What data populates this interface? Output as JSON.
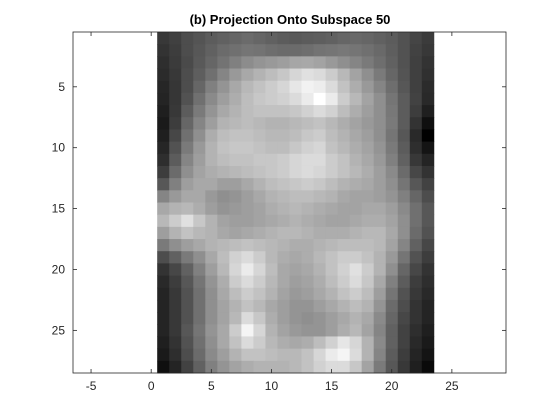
{
  "chart_data": {
    "type": "heatmap",
    "title": "(b) Projection Onto Subspace 50",
    "xlabel": "",
    "ylabel": "",
    "colormap": "gray",
    "xlim": [
      -6.5,
      29.5
    ],
    "ylim": [
      28.5,
      0.5
    ],
    "image_x_range": [
      0.5,
      23.5
    ],
    "image_y_range": [
      0.5,
      28.5
    ],
    "x_ticks": [
      -5,
      0,
      5,
      10,
      15,
      20,
      25
    ],
    "y_ticks": [
      5,
      10,
      15,
      20,
      25
    ],
    "grid": false,
    "box": true,
    "values": [
      [
        0.22,
        0.25,
        0.3,
        0.33,
        0.36,
        0.38,
        0.4,
        0.42,
        0.4,
        0.38,
        0.36,
        0.35,
        0.36,
        0.37,
        0.38,
        0.4,
        0.41,
        0.4,
        0.38,
        0.36,
        0.32,
        0.27,
        0.23
      ],
      [
        0.2,
        0.24,
        0.3,
        0.34,
        0.38,
        0.42,
        0.44,
        0.46,
        0.45,
        0.43,
        0.42,
        0.42,
        0.43,
        0.45,
        0.46,
        0.47,
        0.46,
        0.44,
        0.41,
        0.37,
        0.32,
        0.26,
        0.22
      ],
      [
        0.18,
        0.23,
        0.29,
        0.35,
        0.4,
        0.45,
        0.5,
        0.55,
        0.58,
        0.6,
        0.62,
        0.65,
        0.66,
        0.64,
        0.6,
        0.56,
        0.52,
        0.48,
        0.43,
        0.38,
        0.32,
        0.25,
        0.2
      ],
      [
        0.17,
        0.22,
        0.3,
        0.37,
        0.44,
        0.52,
        0.6,
        0.66,
        0.7,
        0.74,
        0.78,
        0.84,
        0.88,
        0.86,
        0.8,
        0.72,
        0.64,
        0.56,
        0.48,
        0.4,
        0.33,
        0.25,
        0.19
      ],
      [
        0.15,
        0.21,
        0.3,
        0.4,
        0.5,
        0.58,
        0.66,
        0.72,
        0.76,
        0.8,
        0.84,
        0.9,
        0.95,
        0.93,
        0.86,
        0.76,
        0.68,
        0.6,
        0.52,
        0.43,
        0.34,
        0.25,
        0.17
      ],
      [
        0.14,
        0.21,
        0.32,
        0.44,
        0.54,
        0.62,
        0.68,
        0.74,
        0.78,
        0.8,
        0.82,
        0.86,
        0.92,
        1.0,
        0.92,
        0.8,
        0.72,
        0.64,
        0.56,
        0.46,
        0.36,
        0.26,
        0.16
      ],
      [
        0.12,
        0.22,
        0.36,
        0.48,
        0.58,
        0.66,
        0.7,
        0.74,
        0.76,
        0.76,
        0.76,
        0.78,
        0.82,
        0.86,
        0.82,
        0.74,
        0.68,
        0.62,
        0.56,
        0.47,
        0.36,
        0.24,
        0.12
      ],
      [
        0.1,
        0.24,
        0.4,
        0.52,
        0.62,
        0.7,
        0.72,
        0.74,
        0.72,
        0.7,
        0.7,
        0.72,
        0.74,
        0.76,
        0.72,
        0.68,
        0.64,
        0.6,
        0.56,
        0.48,
        0.36,
        0.2,
        0.06
      ],
      [
        0.12,
        0.28,
        0.44,
        0.56,
        0.68,
        0.74,
        0.76,
        0.76,
        0.74,
        0.72,
        0.72,
        0.74,
        0.78,
        0.8,
        0.74,
        0.7,
        0.66,
        0.62,
        0.56,
        0.46,
        0.34,
        0.16,
        0.0
      ],
      [
        0.15,
        0.32,
        0.48,
        0.6,
        0.7,
        0.76,
        0.78,
        0.78,
        0.76,
        0.74,
        0.74,
        0.78,
        0.82,
        0.84,
        0.76,
        0.72,
        0.68,
        0.64,
        0.58,
        0.48,
        0.36,
        0.18,
        0.08
      ],
      [
        0.18,
        0.36,
        0.52,
        0.62,
        0.7,
        0.74,
        0.76,
        0.76,
        0.78,
        0.78,
        0.8,
        0.84,
        0.86,
        0.86,
        0.8,
        0.76,
        0.7,
        0.66,
        0.6,
        0.5,
        0.38,
        0.22,
        0.14
      ],
      [
        0.24,
        0.42,
        0.56,
        0.64,
        0.68,
        0.7,
        0.72,
        0.74,
        0.76,
        0.78,
        0.8,
        0.84,
        0.86,
        0.84,
        0.8,
        0.76,
        0.72,
        0.68,
        0.62,
        0.54,
        0.42,
        0.28,
        0.2
      ],
      [
        0.34,
        0.5,
        0.62,
        0.66,
        0.66,
        0.62,
        0.62,
        0.66,
        0.7,
        0.74,
        0.76,
        0.78,
        0.8,
        0.78,
        0.74,
        0.7,
        0.68,
        0.66,
        0.62,
        0.56,
        0.46,
        0.34,
        0.26
      ],
      [
        0.52,
        0.6,
        0.66,
        0.66,
        0.6,
        0.56,
        0.58,
        0.62,
        0.66,
        0.7,
        0.72,
        0.74,
        0.74,
        0.72,
        0.7,
        0.66,
        0.64,
        0.64,
        0.62,
        0.58,
        0.5,
        0.4,
        0.3
      ],
      [
        0.66,
        0.7,
        0.72,
        0.68,
        0.62,
        0.58,
        0.6,
        0.62,
        0.64,
        0.68,
        0.7,
        0.72,
        0.7,
        0.68,
        0.66,
        0.64,
        0.64,
        0.66,
        0.66,
        0.62,
        0.54,
        0.44,
        0.34
      ],
      [
        0.72,
        0.8,
        0.88,
        0.78,
        0.7,
        0.64,
        0.62,
        0.62,
        0.64,
        0.66,
        0.68,
        0.7,
        0.68,
        0.66,
        0.64,
        0.64,
        0.66,
        0.68,
        0.68,
        0.64,
        0.56,
        0.44,
        0.34
      ],
      [
        0.62,
        0.7,
        0.76,
        0.72,
        0.7,
        0.66,
        0.64,
        0.66,
        0.68,
        0.7,
        0.72,
        0.72,
        0.7,
        0.68,
        0.68,
        0.68,
        0.7,
        0.72,
        0.72,
        0.66,
        0.56,
        0.42,
        0.32
      ],
      [
        0.48,
        0.56,
        0.62,
        0.66,
        0.7,
        0.72,
        0.74,
        0.76,
        0.74,
        0.72,
        0.7,
        0.68,
        0.68,
        0.7,
        0.72,
        0.74,
        0.74,
        0.74,
        0.72,
        0.64,
        0.52,
        0.38,
        0.28
      ],
      [
        0.3,
        0.38,
        0.48,
        0.56,
        0.66,
        0.74,
        0.82,
        0.86,
        0.8,
        0.72,
        0.68,
        0.66,
        0.68,
        0.72,
        0.76,
        0.8,
        0.8,
        0.76,
        0.7,
        0.6,
        0.46,
        0.32,
        0.24
      ],
      [
        0.2,
        0.28,
        0.38,
        0.5,
        0.62,
        0.72,
        0.84,
        0.92,
        0.84,
        0.74,
        0.66,
        0.64,
        0.66,
        0.7,
        0.76,
        0.82,
        0.88,
        0.8,
        0.7,
        0.56,
        0.4,
        0.28,
        0.2
      ],
      [
        0.16,
        0.24,
        0.34,
        0.46,
        0.58,
        0.68,
        0.8,
        0.86,
        0.8,
        0.72,
        0.66,
        0.62,
        0.64,
        0.68,
        0.74,
        0.8,
        0.86,
        0.78,
        0.66,
        0.5,
        0.36,
        0.24,
        0.18
      ],
      [
        0.14,
        0.22,
        0.32,
        0.44,
        0.56,
        0.66,
        0.74,
        0.8,
        0.76,
        0.7,
        0.64,
        0.6,
        0.62,
        0.66,
        0.7,
        0.76,
        0.8,
        0.74,
        0.62,
        0.46,
        0.32,
        0.22,
        0.16
      ],
      [
        0.14,
        0.22,
        0.32,
        0.44,
        0.56,
        0.64,
        0.7,
        0.76,
        0.72,
        0.66,
        0.62,
        0.58,
        0.58,
        0.62,
        0.66,
        0.7,
        0.74,
        0.7,
        0.58,
        0.42,
        0.3,
        0.2,
        0.14
      ],
      [
        0.14,
        0.22,
        0.32,
        0.44,
        0.56,
        0.64,
        0.72,
        0.86,
        0.78,
        0.68,
        0.62,
        0.58,
        0.56,
        0.58,
        0.62,
        0.66,
        0.7,
        0.66,
        0.54,
        0.4,
        0.28,
        0.2,
        0.14
      ],
      [
        0.14,
        0.22,
        0.34,
        0.46,
        0.58,
        0.66,
        0.8,
        0.96,
        0.84,
        0.7,
        0.64,
        0.6,
        0.58,
        0.58,
        0.62,
        0.68,
        0.72,
        0.64,
        0.52,
        0.38,
        0.26,
        0.18,
        0.12
      ],
      [
        0.12,
        0.2,
        0.32,
        0.44,
        0.56,
        0.66,
        0.76,
        0.86,
        0.8,
        0.72,
        0.68,
        0.66,
        0.68,
        0.74,
        0.82,
        0.9,
        0.84,
        0.7,
        0.54,
        0.38,
        0.26,
        0.16,
        0.1
      ],
      [
        0.1,
        0.18,
        0.3,
        0.42,
        0.54,
        0.62,
        0.7,
        0.76,
        0.76,
        0.74,
        0.72,
        0.72,
        0.76,
        0.84,
        0.92,
        0.96,
        0.86,
        0.7,
        0.52,
        0.36,
        0.24,
        0.14,
        0.08
      ],
      [
        0.06,
        0.14,
        0.26,
        0.38,
        0.5,
        0.58,
        0.64,
        0.68,
        0.7,
        0.7,
        0.7,
        0.72,
        0.76,
        0.82,
        0.86,
        0.86,
        0.78,
        0.64,
        0.48,
        0.34,
        0.22,
        0.12,
        0.04
      ]
    ]
  }
}
